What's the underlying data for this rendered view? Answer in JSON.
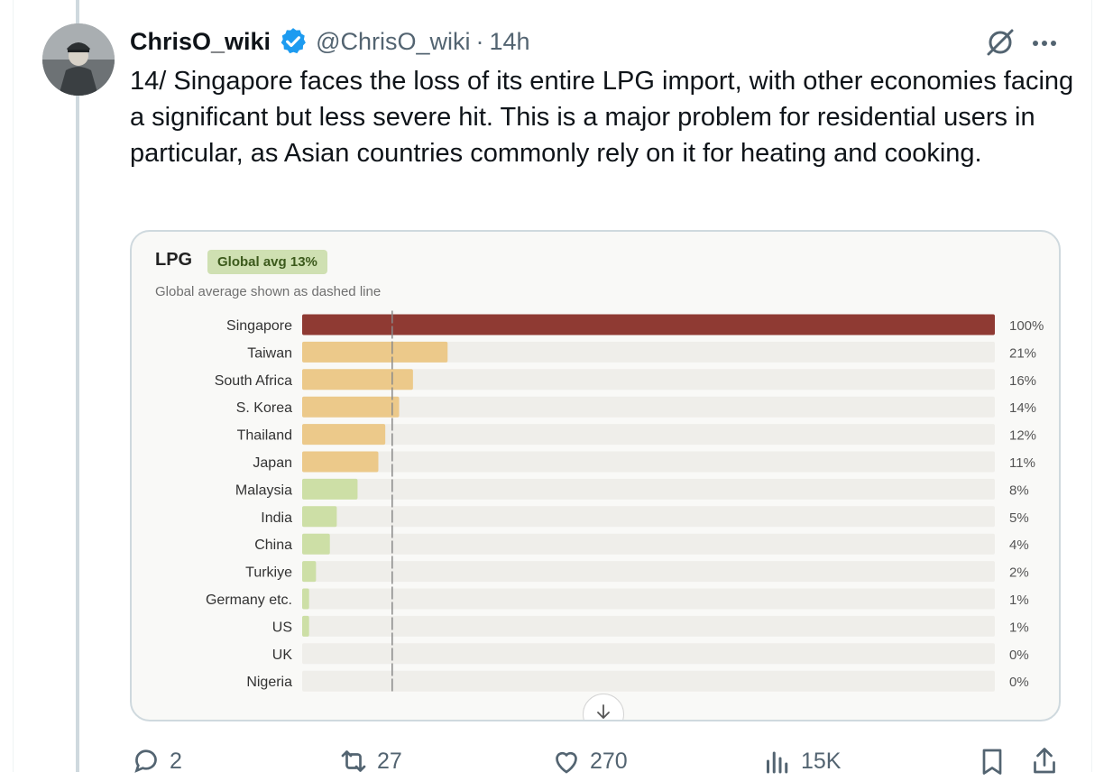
{
  "tweet": {
    "author_name": "ChrisO_wiki",
    "handle": "@ChrisO_wiki",
    "separator": "·",
    "time": "14h",
    "verified": true,
    "text": "14/ Singapore faces the loss of its entire LPG import, with other economies facing a significant but less severe hit. This is a major problem for residential users in particular, as Asian countries commonly rely on it for heating and cooking."
  },
  "card": {
    "title": "LPG",
    "badge": "Global avg 13%",
    "subtitle": "Global average shown as dashed line"
  },
  "chart_data": {
    "type": "bar",
    "orientation": "horizontal",
    "categories": [
      "Singapore",
      "Taiwan",
      "South Africa",
      "S. Korea",
      "Thailand",
      "Japan",
      "Malaysia",
      "India",
      "China",
      "Turkiye",
      "Germany etc.",
      "US",
      "UK",
      "Nigeria"
    ],
    "values": [
      100,
      21,
      16,
      14,
      12,
      11,
      8,
      5,
      4,
      2,
      1,
      1,
      0,
      0
    ],
    "value_labels": [
      "100%",
      "21%",
      "16%",
      "14%",
      "12%",
      "11%",
      "8%",
      "5%",
      "4%",
      "2%",
      "1%",
      "1%",
      "0%",
      "0%"
    ],
    "xlim": [
      0,
      100
    ],
    "reference_line": 13,
    "colors": {
      "high": "#8f3a33",
      "medium": "#ecc98a",
      "low": "#cddfa6",
      "track": "#efeeea",
      "high_label": "#8f3a33",
      "label": "#555555"
    }
  },
  "actions": {
    "replies": "2",
    "reposts": "27",
    "likes": "270",
    "views": "15K"
  },
  "icons": [
    "verified-badge-icon",
    "grok-icon",
    "more-icon",
    "reply-icon",
    "repost-icon",
    "like-icon",
    "views-icon",
    "bookmark-icon",
    "share-icon",
    "arrow-down-icon"
  ]
}
